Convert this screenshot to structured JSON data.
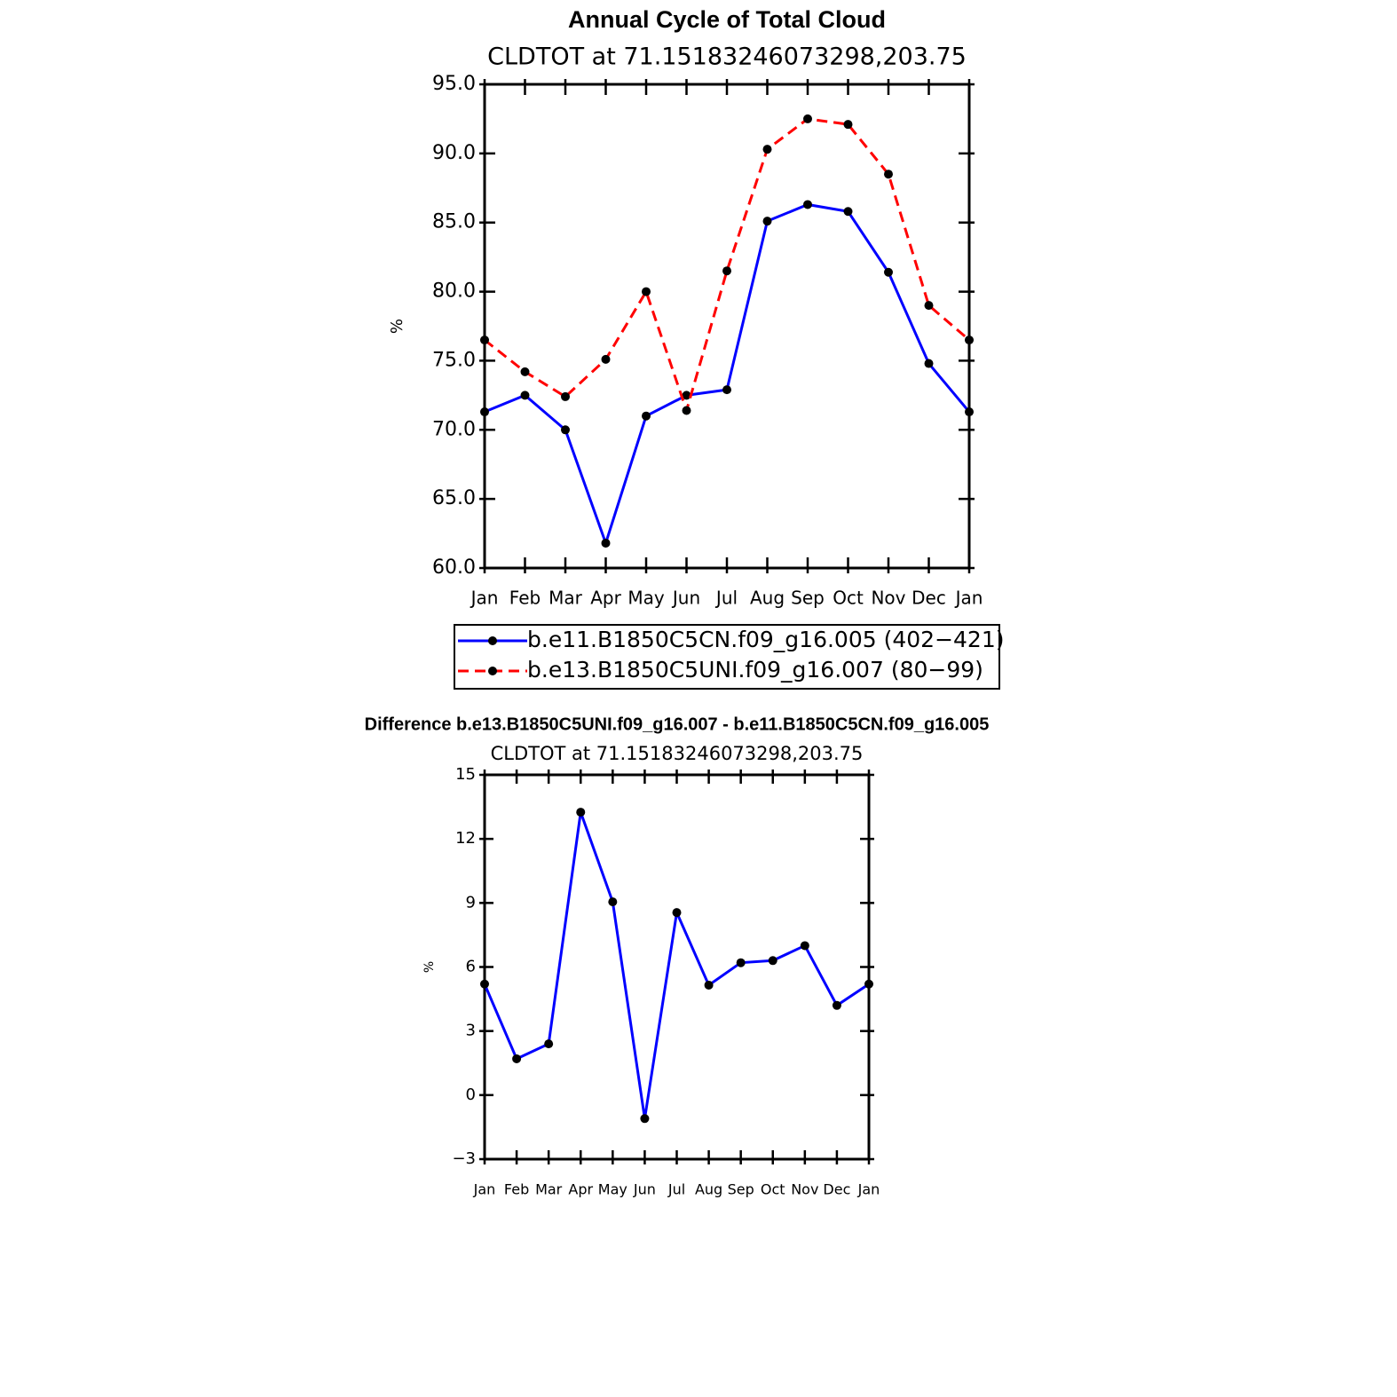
{
  "chart_data": [
    {
      "type": "line",
      "title": "Annual Cycle of Total Cloud",
      "subtitle": "CLDTOT at 71.15183246073298,203.75",
      "y_label": "%",
      "categories": [
        "Jan",
        "Feb",
        "Mar",
        "Apr",
        "May",
        "Jun",
        "Jul",
        "Aug",
        "Sep",
        "Oct",
        "Nov",
        "Dec",
        "Jan"
      ],
      "series": [
        {
          "name": "b.e11.B1850C5CN.f09_g16.005 (402−421)",
          "color": "#0000ff",
          "dashed": false,
          "values": [
            71.3,
            72.5,
            70.0,
            61.8,
            71.0,
            72.5,
            72.9,
            85.1,
            86.3,
            85.8,
            81.4,
            74.8,
            71.3
          ]
        },
        {
          "name": "b.e13.B1850C5UNI.f09_g16.007 (80−99)",
          "color": "#ff0000",
          "dashed": true,
          "values": [
            76.5,
            74.2,
            72.4,
            75.1,
            80.0,
            71.4,
            81.5,
            90.3,
            92.5,
            92.1,
            88.5,
            79.0,
            76.5
          ]
        }
      ],
      "marker_color": "#000000",
      "ylim": [
        60,
        95
      ],
      "yticks": [
        {
          "value": 60,
          "label": "60.0"
        },
        {
          "value": 65,
          "label": "65.0"
        },
        {
          "value": 70,
          "label": "70.0"
        },
        {
          "value": 75,
          "label": "75.0"
        },
        {
          "value": 80,
          "label": "80.0"
        },
        {
          "value": 85,
          "label": "85.0"
        },
        {
          "value": 90,
          "label": "90.0"
        },
        {
          "value": 95,
          "label": "95.0"
        }
      ],
      "legend": "bottom"
    },
    {
      "type": "line",
      "title": "Difference b.e13.B1850C5UNI.f09_g16.007 - b.e11.B1850C5CN.f09_g16.005",
      "subtitle": "CLDTOT at 71.15183246073298,203.75",
      "y_label": "%",
      "categories": [
        "Jan",
        "Feb",
        "Mar",
        "Apr",
        "May",
        "Jun",
        "Jul",
        "Aug",
        "Sep",
        "Oct",
        "Nov",
        "Dec",
        "Jan"
      ],
      "color": "#0000ff",
      "marker_color": "#000000",
      "values": [
        5.2,
        1.7,
        2.4,
        13.25,
        9.05,
        -1.1,
        8.55,
        5.15,
        6.2,
        6.3,
        7.0,
        4.2,
        5.2
      ],
      "ylim": [
        -3,
        15
      ],
      "yticks": [
        {
          "value": -3,
          "label": "−3"
        },
        0,
        3,
        6,
        9,
        12,
        15
      ]
    }
  ]
}
